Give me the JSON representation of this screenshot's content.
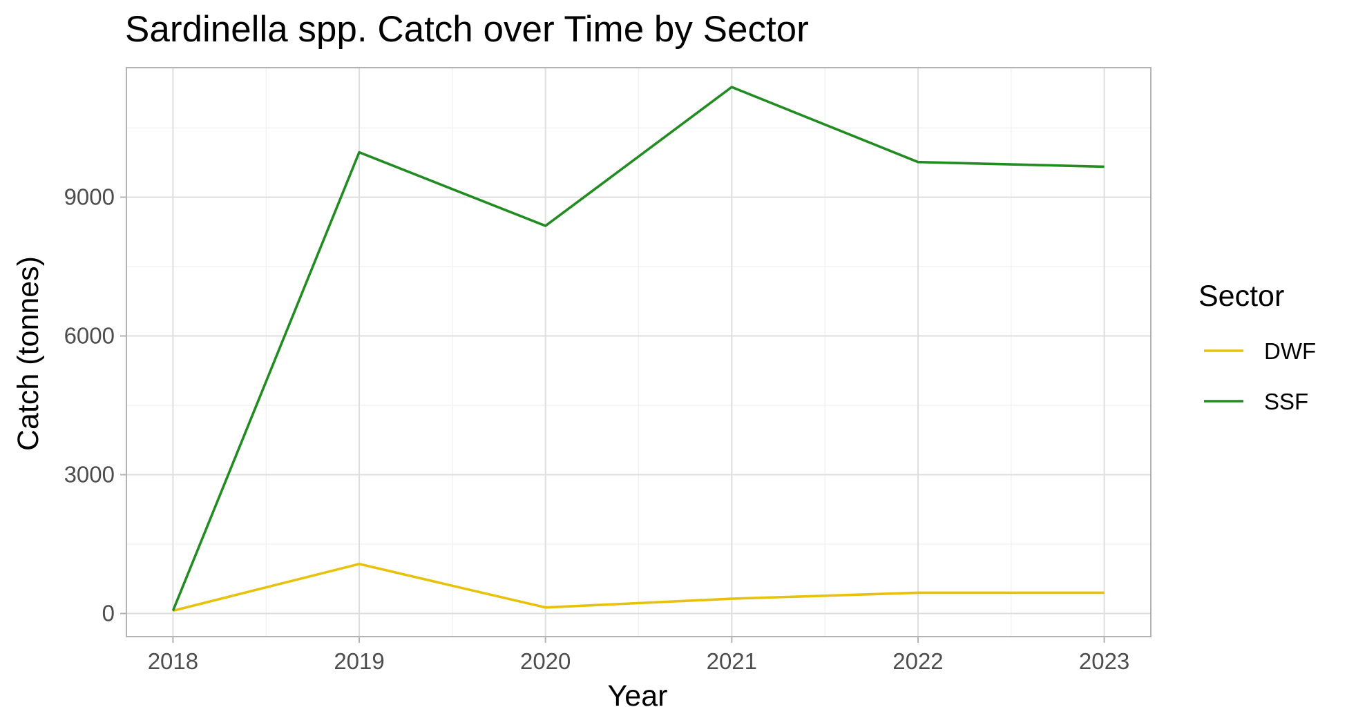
{
  "chart_data": {
    "type": "line",
    "title": "Sardinella spp. Catch over Time by Sector",
    "xlabel": "Year",
    "ylabel": "Catch (tonnes)",
    "x": [
      2018,
      2019,
      2020,
      2021,
      2022,
      2023
    ],
    "x_tick_labels": [
      "2018",
      "2019",
      "2020",
      "2021",
      "2022",
      "2023"
    ],
    "y_ticks": [
      0,
      3000,
      6000,
      9000
    ],
    "y_tick_labels": [
      "0",
      "3000",
      "6000",
      "9000"
    ],
    "xlim": [
      2017.75,
      2023.25
    ],
    "ylim": [
      -500,
      11800
    ],
    "grid": true,
    "legend_title": "Sector",
    "legend_position": "right",
    "series": [
      {
        "name": "DWF",
        "color": "#E8C20A",
        "values": [
          60,
          1070,
          130,
          320,
          450,
          450
        ]
      },
      {
        "name": "SSF",
        "color": "#228B22",
        "values": [
          60,
          9970,
          8380,
          11380,
          9760,
          9660
        ]
      }
    ]
  }
}
